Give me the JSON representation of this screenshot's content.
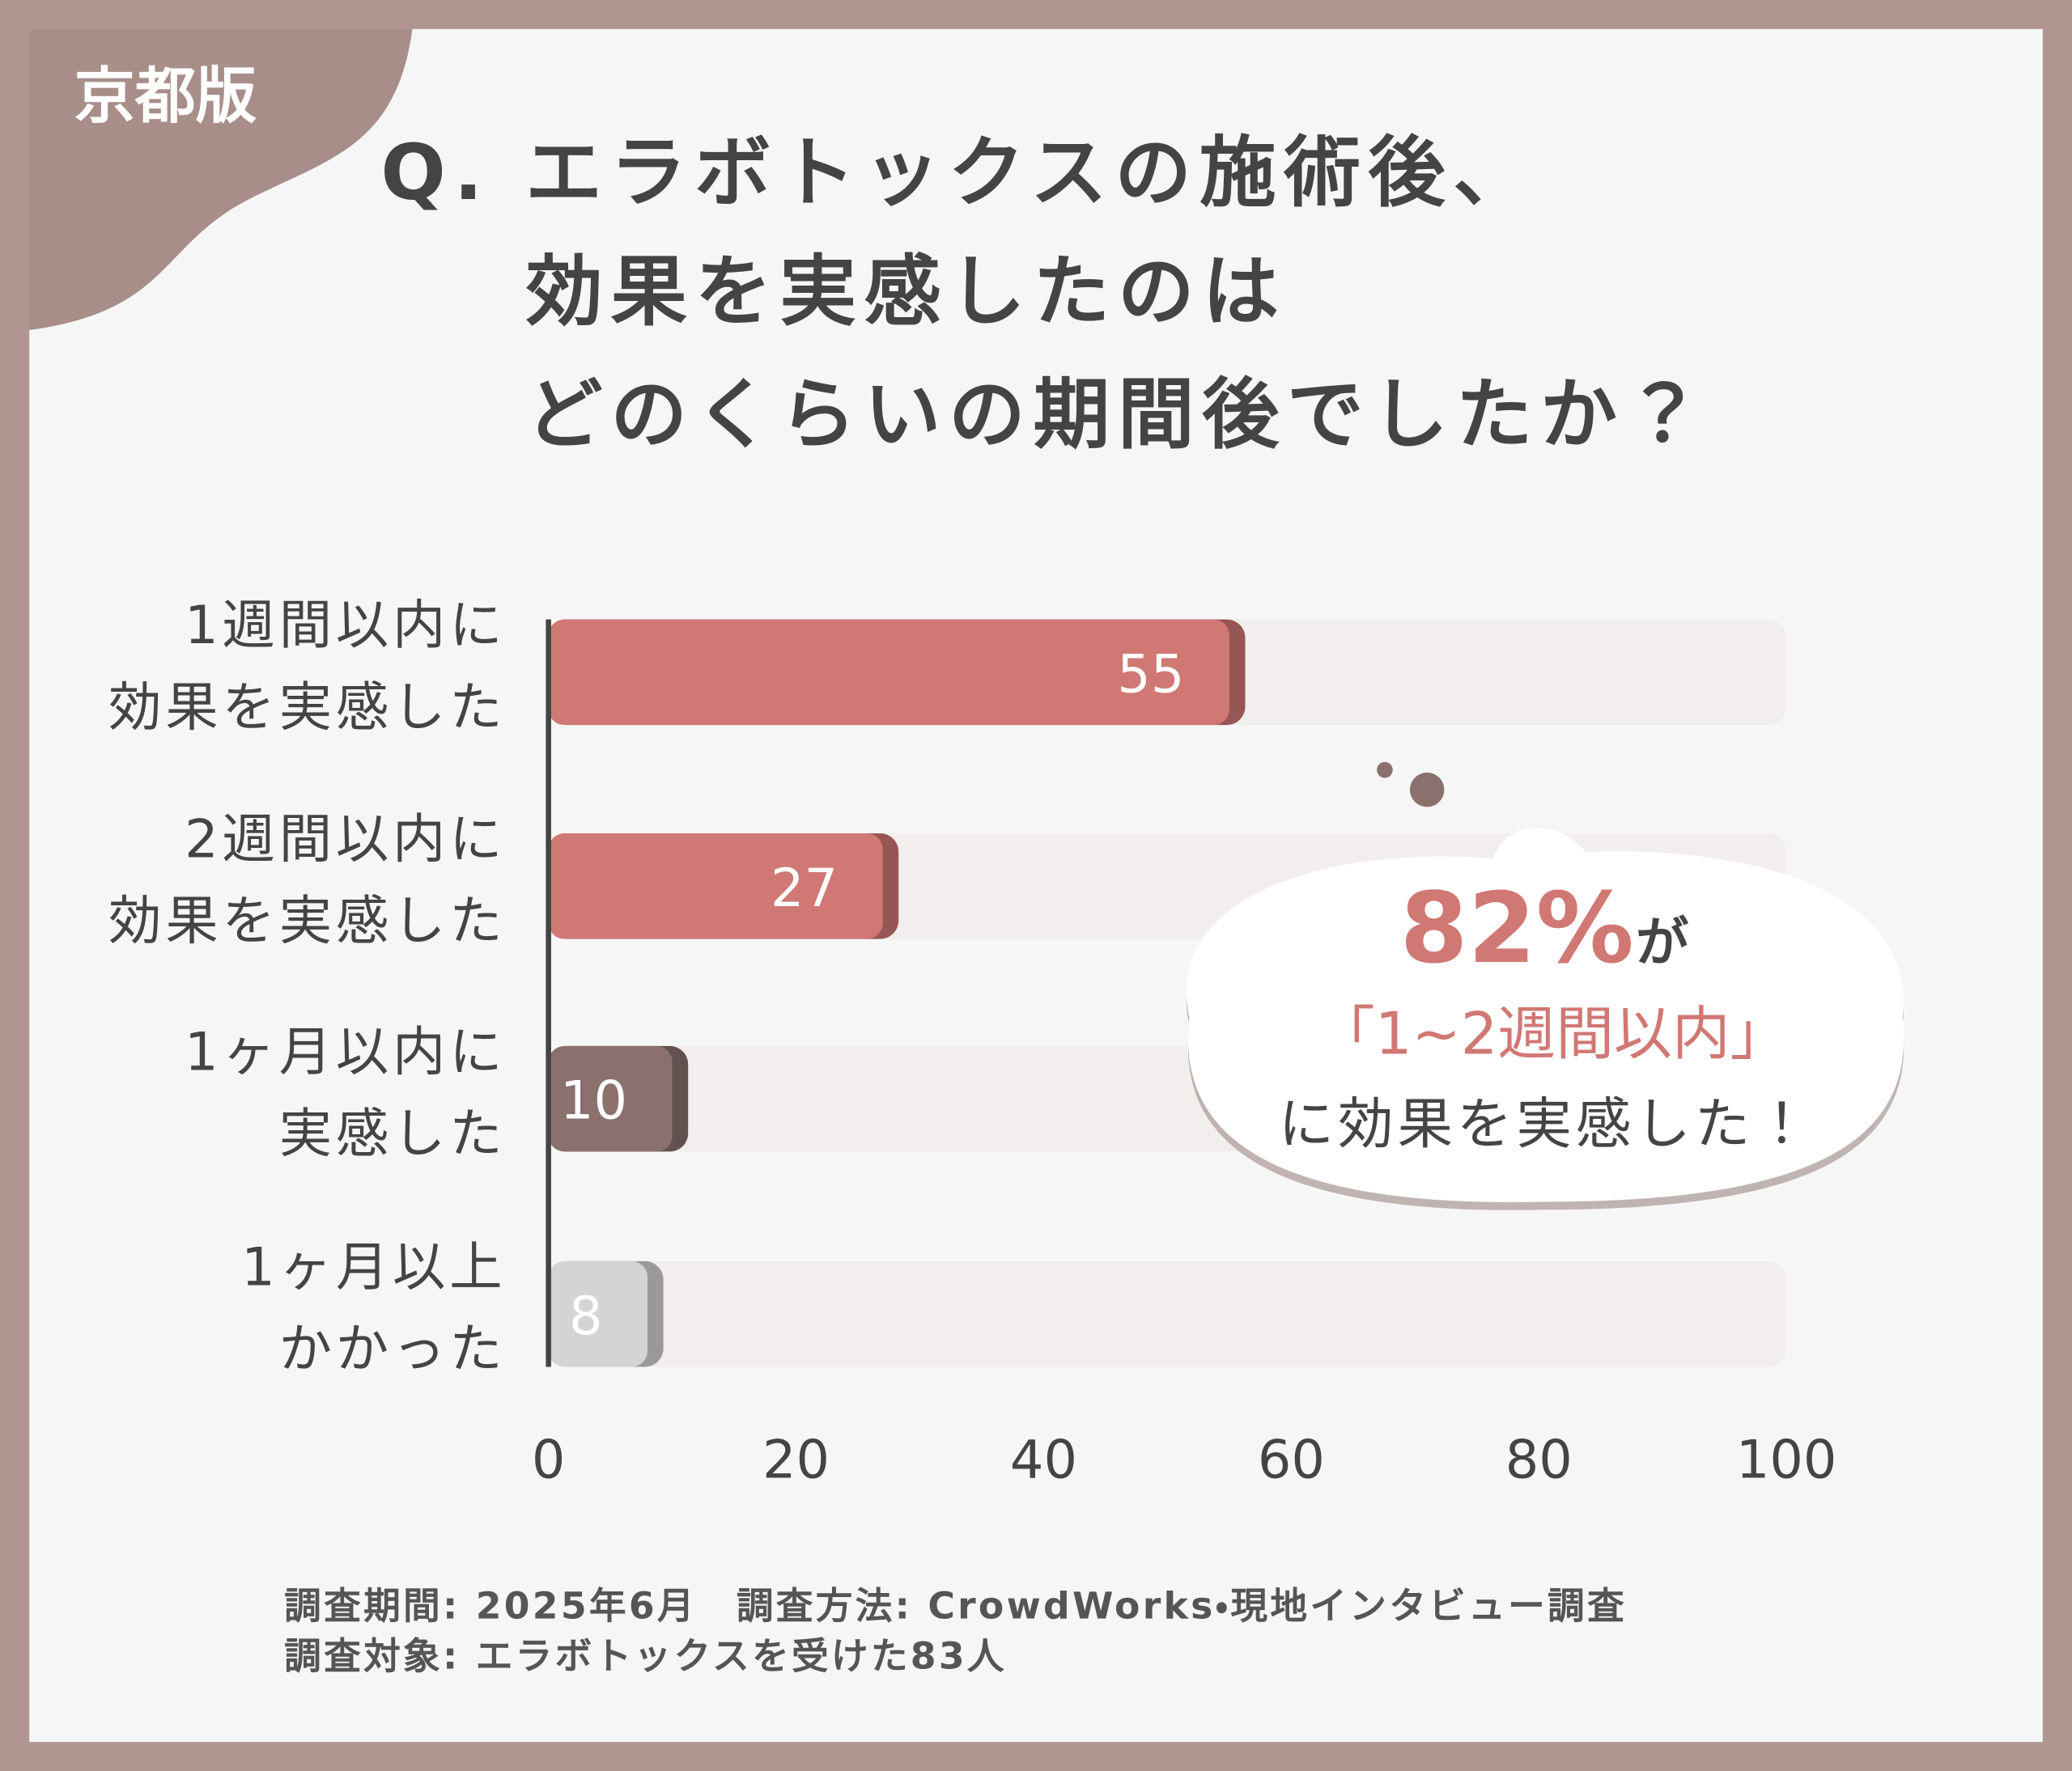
{
  "badge": "京都版",
  "chart_data": {
    "type": "bar",
    "orientation": "horizontal",
    "title": [
      "Q. エラボトックスの施術後、",
      "効果を実感したのは",
      "どのくらいの期間後でしたか？"
    ],
    "categories": [
      [
        "1週間以内に",
        "効果を実感した"
      ],
      [
        "2週間以内に",
        "効果を実感した"
      ],
      [
        "1ヶ月以内に",
        "実感した"
      ],
      [
        "1ヶ月以上",
        "かかった"
      ]
    ],
    "values": [
      55,
      27,
      10,
      8
    ],
    "colors": [
      "#d07874",
      "#d07874",
      "#8a716e",
      "#d6d3d3"
    ],
    "track_color": "#f1eeed",
    "xlim": [
      0,
      100
    ],
    "xticks": [
      0,
      20,
      40,
      60,
      80,
      100
    ],
    "annotation": {
      "number": "82%",
      "particle": "が",
      "line2": "「1~2週間以内」",
      "line3": "に効果を実感した！"
    },
    "footnotes": [
      "調査期間: 2025年6月　調査方法: CrowdWorks・現地インタビュー調査",
      "調査対象: エラボトックスを受けた83人"
    ]
  }
}
